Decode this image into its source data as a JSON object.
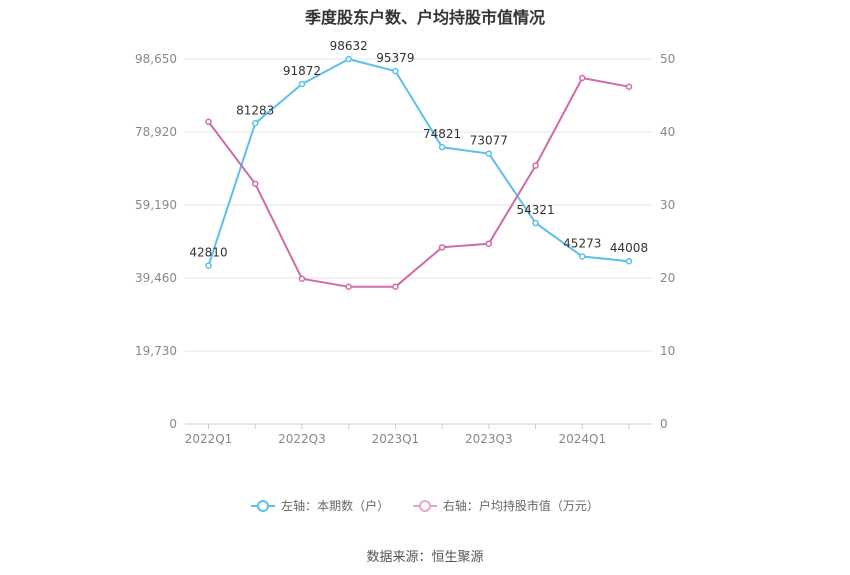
{
  "chart_data": {
    "type": "line",
    "title": "季度股东户数、户均持股市值情况",
    "categories": [
      "2022Q1",
      "2022Q2",
      "2022Q3",
      "2022Q4",
      "2023Q1",
      "2023Q2",
      "2023Q3",
      "2023Q4",
      "2024Q1",
      "2024Q2"
    ],
    "x_tick_labels": [
      "2022Q1",
      "",
      "2022Q3",
      "",
      "2023Q1",
      "",
      "2023Q3",
      "",
      "2024Q1",
      ""
    ],
    "y_left": {
      "ylim": [
        0,
        98650
      ],
      "ticks": [
        "0",
        "19,730",
        "39,460",
        "59,190",
        "78,920",
        "98,650"
      ]
    },
    "y_right": {
      "ylim": [
        0,
        50
      ],
      "ticks": [
        "0",
        "10",
        "20",
        "30",
        "40",
        "50"
      ]
    },
    "series": [
      {
        "name": "左轴：本期数（户）",
        "axis": "left",
        "color": "#5bc0eb",
        "values": [
          42810,
          81283,
          91872,
          98632,
          95379,
          74821,
          73077,
          54321,
          45273,
          44008
        ],
        "data_labels": [
          "42810",
          "81283",
          "91872",
          "98632",
          "95379",
          "74821",
          "73077",
          "54321",
          "45273",
          "44008"
        ]
      },
      {
        "name": "右轴：户均持股市值（万元）",
        "axis": "right",
        "color": "#d06aa8",
        "values": [
          41.4,
          32.9,
          19.9,
          18.8,
          18.8,
          24.2,
          24.7,
          35.4,
          47.4,
          46.2
        ]
      }
    ],
    "grid": true,
    "legend_position": "bottom"
  },
  "source_text": "数据来源：恒生聚源"
}
